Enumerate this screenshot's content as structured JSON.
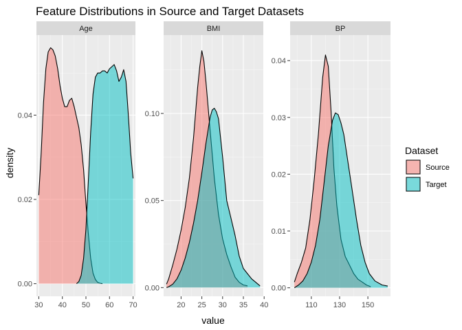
{
  "chart_data": {
    "type": "area",
    "title": "Feature Distributions in Source and Target Datasets",
    "xlabel": "value",
    "ylabel": "density",
    "grid": true,
    "legend": {
      "title": "Dataset",
      "placement": "right",
      "entries": [
        {
          "name": "Source",
          "color": "#F8766D"
        },
        {
          "name": "Target",
          "color": "#00BFC4"
        }
      ]
    },
    "panels": [
      {
        "name": "Age",
        "xlim": [
          29,
          71
        ],
        "ylim": [
          -0.003,
          0.059
        ],
        "xticks": [
          30,
          40,
          50,
          60,
          70
        ],
        "yticks": [
          0.0,
          0.02,
          0.04
        ],
        "ytick_labels": [
          "0.00",
          "0.02",
          "0.04"
        ],
        "series": [
          {
            "name": "Source",
            "x": [
              30,
              31,
              32,
              33,
              34,
              35,
              36,
              37,
              38,
              39,
              40,
              41,
              42,
              43,
              44,
              45,
              46,
              47,
              48,
              49,
              50,
              51,
              52,
              53,
              54,
              55,
              56,
              57
            ],
            "y": [
              0.021,
              0.031,
              0.043,
              0.051,
              0.055,
              0.056,
              0.0555,
              0.054,
              0.051,
              0.047,
              0.044,
              0.042,
              0.042,
              0.0435,
              0.044,
              0.042,
              0.0395,
              0.037,
              0.033,
              0.027,
              0.019,
              0.012,
              0.006,
              0.0025,
              0.001,
              0.0003,
              0.0001,
              0
            ]
          },
          {
            "name": "Target",
            "x": [
              46,
              47,
              48,
              49,
              50,
              51,
              52,
              53,
              54,
              55,
              56,
              57,
              58,
              59,
              60,
              61,
              62,
              63,
              64,
              65,
              66,
              67,
              68,
              69,
              70
            ],
            "y": [
              0,
              0.0005,
              0.002,
              0.006,
              0.013,
              0.024,
              0.036,
              0.045,
              0.049,
              0.05,
              0.05,
              0.0505,
              0.0505,
              0.05,
              0.051,
              0.0515,
              0.052,
              0.0505,
              0.048,
              0.049,
              0.0508,
              0.048,
              0.04,
              0.031,
              0.025
            ]
          }
        ]
      },
      {
        "name": "BMI",
        "xlim": [
          15.8,
          39.8
        ],
        "ylim": [
          -0.005,
          0.145
        ],
        "xticks": [
          20,
          25,
          30,
          35,
          40
        ],
        "yticks": [
          0.0,
          0.05,
          0.1
        ],
        "ytick_labels": [
          "0.00",
          "0.05",
          "0.10"
        ],
        "series": [
          {
            "name": "Source",
            "x": [
              16.5,
              17,
              18,
              19,
              20,
              21,
              22,
              23,
              24,
              24.5,
              25,
              25.5,
              26,
              27,
              28,
              29,
              30,
              31,
              32,
              33,
              34,
              35,
              36
            ],
            "y": [
              0.002,
              0.005,
              0.013,
              0.022,
              0.033,
              0.046,
              0.063,
              0.086,
              0.115,
              0.127,
              0.136,
              0.13,
              0.118,
              0.09,
              0.063,
              0.042,
              0.028,
              0.019,
              0.012,
              0.006,
              0.003,
              0.0015,
              0.001
            ]
          },
          {
            "name": "Target",
            "x": [
              16.5,
              17,
              18,
              19,
              20,
              21,
              22,
              23,
              24,
              25,
              26,
              27,
              27.5,
              28,
              28.5,
              29,
              30,
              31,
              32,
              33,
              34,
              35,
              36,
              37,
              38,
              39
            ],
            "y": [
              0,
              0.0005,
              0.002,
              0.005,
              0.01,
              0.017,
              0.026,
              0.037,
              0.05,
              0.066,
              0.083,
              0.098,
              0.102,
              0.103,
              0.101,
              0.097,
              0.075,
              0.05,
              0.04,
              0.03,
              0.018,
              0.011,
              0.008,
              0.005,
              0.003,
              0.001
            ]
          }
        ]
      },
      {
        "name": "BP",
        "xlim": [
          95,
          166
        ],
        "ylim": [
          -0.0015,
          0.0445
        ],
        "xticks": [
          110,
          130,
          150
        ],
        "yticks": [
          0.0,
          0.01,
          0.02,
          0.03,
          0.04
        ],
        "ytick_labels": [
          "0.00",
          "0.01",
          "0.02",
          "0.03",
          "0.04"
        ],
        "series": [
          {
            "name": "Source",
            "x": [
              98,
              100,
              103,
              106,
              109,
              112,
              115,
              118,
              120,
              122,
              124,
              126,
              128,
              131,
              134,
              137,
              140,
              143,
              146,
              149,
              152
            ],
            "y": [
              0.001,
              0.0025,
              0.0045,
              0.007,
              0.012,
              0.019,
              0.027,
              0.037,
              0.041,
              0.039,
              0.031,
              0.021,
              0.0145,
              0.0085,
              0.0055,
              0.004,
              0.0025,
              0.0015,
              0.001,
              0.0005,
              0.0002
            ]
          },
          {
            "name": "Target",
            "x": [
              98,
              101,
              104,
              107,
              110,
              113,
              116,
              119,
              122,
              125,
              127,
              129,
              131,
              133,
              136,
              139,
              142,
              145,
              148,
              151,
              155,
              160,
              164
            ],
            "y": [
              0,
              0.0005,
              0.0012,
              0.0025,
              0.0045,
              0.0075,
              0.012,
              0.0185,
              0.025,
              0.0295,
              0.0308,
              0.0305,
              0.029,
              0.027,
              0.022,
              0.017,
              0.012,
              0.0075,
              0.0045,
              0.0025,
              0.0012,
              0.0005,
              0.0003
            ]
          }
        ]
      }
    ]
  }
}
